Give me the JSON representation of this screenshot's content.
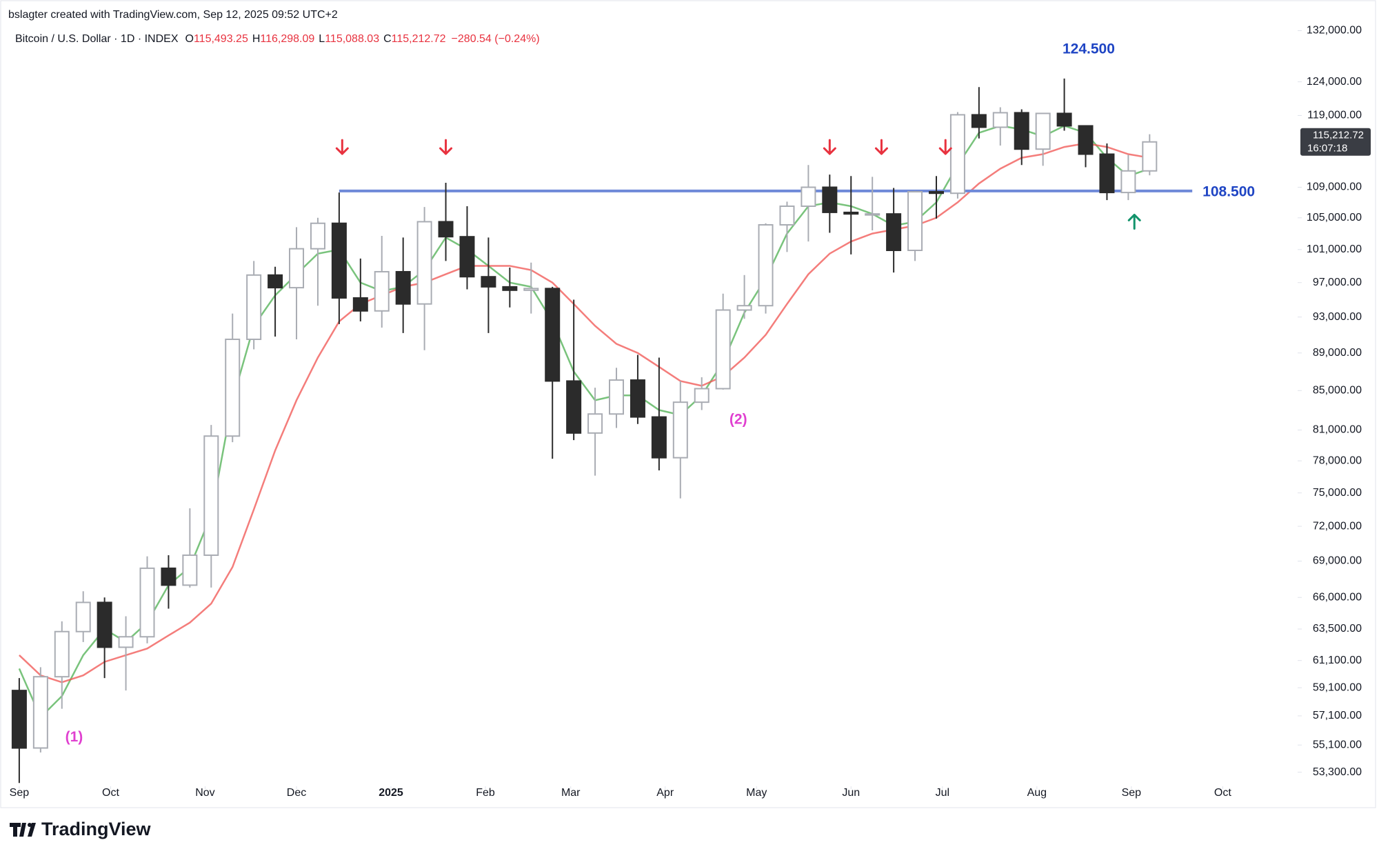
{
  "header": {
    "credit": "bslagter created with TradingView.com, Sep 12, 2025 09:52 UTC+2",
    "symbol": "Bitcoin / U.S. Dollar · 1D · INDEX",
    "ohlc": [
      {
        "key": "O",
        "text": "115,493.25"
      },
      {
        "key": "H",
        "text": "116,298.09"
      },
      {
        "key": "L",
        "text": "115,088.03"
      },
      {
        "key": "C",
        "text": "115,212.72"
      }
    ],
    "change": "−280.54 (−0.24%)"
  },
  "footer": {
    "brand": "TradingView"
  },
  "chart_data": {
    "type": "candlestick",
    "log_scale": true,
    "grid": false,
    "ylim": [
      52700,
      133400
    ],
    "yticks": [
      {
        "value": 132000,
        "label": "132,000.00"
      },
      {
        "value": 124000,
        "label": "124,000.00"
      },
      {
        "value": 119000,
        "label": "119,000.00"
      },
      {
        "value": 109000,
        "label": "109,000.00"
      },
      {
        "value": 105000,
        "label": "105,000.00"
      },
      {
        "value": 101000,
        "label": "101,000.00"
      },
      {
        "value": 97000,
        "label": "97,000.00"
      },
      {
        "value": 93000,
        "label": "93,000.00"
      },
      {
        "value": 89000,
        "label": "89,000.00"
      },
      {
        "value": 85000,
        "label": "85,000.00"
      },
      {
        "value": 81000,
        "label": "81,000.00"
      },
      {
        "value": 78000,
        "label": "78,000.00"
      },
      {
        "value": 75000,
        "label": "75,000.00"
      },
      {
        "value": 72000,
        "label": "72,000.00"
      },
      {
        "value": 69000,
        "label": "69,000.00"
      },
      {
        "value": 66000,
        "label": "66,000.00"
      },
      {
        "value": 63500,
        "label": "63,500.00"
      },
      {
        "value": 61100,
        "label": "61,100.00"
      },
      {
        "value": 59100,
        "label": "59,100.00"
      },
      {
        "value": 57100,
        "label": "57,100.00"
      },
      {
        "value": 55100,
        "label": "55,100.00"
      },
      {
        "value": 53300,
        "label": "53,300.00"
      }
    ],
    "xlim": [
      -3.6,
      418
    ],
    "xticks": [
      {
        "value": 0,
        "label": "Sep"
      },
      {
        "value": 30,
        "label": "Oct"
      },
      {
        "value": 61,
        "label": "Nov"
      },
      {
        "value": 91,
        "label": "Dec"
      },
      {
        "value": 122,
        "label": "2025"
      },
      {
        "value": 153,
        "label": "Feb"
      },
      {
        "value": 181,
        "label": "Mar"
      },
      {
        "value": 212,
        "label": "Apr"
      },
      {
        "value": 242,
        "label": "May"
      },
      {
        "value": 273,
        "label": "Jun"
      },
      {
        "value": 303,
        "label": "Jul"
      },
      {
        "value": 334,
        "label": "Aug"
      },
      {
        "value": 365,
        "label": "Sep"
      },
      {
        "value": 395,
        "label": "Oct"
      }
    ],
    "x": [
      0,
      7,
      14,
      21,
      28,
      35,
      42,
      49,
      56,
      63,
      70,
      77,
      84,
      91,
      98,
      105,
      112,
      119,
      126,
      133,
      140,
      147,
      154,
      161,
      168,
      175,
      182,
      189,
      196,
      203,
      210,
      217,
      224,
      231,
      238,
      245,
      252,
      259,
      266,
      273,
      280,
      287,
      294,
      301,
      308,
      315,
      322,
      329,
      336,
      343,
      350,
      357,
      364,
      371
    ],
    "open": [
      58900,
      54900,
      59900,
      63300,
      65600,
      62100,
      62900,
      68400,
      67000,
      69500,
      80400,
      90500,
      97900,
      96400,
      101100,
      104300,
      95200,
      93700,
      98300,
      94500,
      104500,
      102600,
      97700,
      96500,
      96100,
      96300,
      86000,
      80700,
      82600,
      86100,
      82300,
      78300,
      83800,
      85200,
      93800,
      94300,
      104100,
      106500,
      109000,
      105700,
      105500,
      105500,
      100900,
      108400,
      108200,
      119100,
      117300,
      119400,
      114200,
      119300,
      117500,
      113500,
      108300,
      111200
    ],
    "high": [
      59800,
      60600,
      64100,
      66500,
      66000,
      64500,
      69400,
      69500,
      73600,
      81500,
      93400,
      99600,
      98900,
      103800,
      105000,
      108300,
      99900,
      102700,
      102500,
      106400,
      109600,
      106500,
      102500,
      98800,
      99400,
      96500,
      95000,
      85300,
      87400,
      88800,
      88500,
      86000,
      86400,
      95700,
      97900,
      104300,
      107100,
      112000,
      110700,
      110500,
      110400,
      108900,
      108500,
      110500,
      119500,
      123200,
      120200,
      119900,
      119300,
      124500,
      117500,
      115000,
      113400,
      116300
    ],
    "low": [
      52600,
      54600,
      57600,
      62500,
      59800,
      58900,
      62400,
      65100,
      66800,
      66800,
      79800,
      89400,
      90800,
      90500,
      94300,
      92200,
      92500,
      91800,
      91200,
      89300,
      99600,
      96200,
      91200,
      94100,
      93400,
      78200,
      80000,
      76600,
      81200,
      81600,
      77100,
      74500,
      83000,
      85100,
      92800,
      93400,
      100700,
      102000,
      103100,
      100400,
      103400,
      98200,
      99600,
      104900,
      107500,
      115700,
      114700,
      112000,
      111900,
      116800,
      111700,
      107300,
      107300,
      110600
    ],
    "close": [
      54900,
      59900,
      63300,
      65600,
      62100,
      62900,
      68400,
      67000,
      69500,
      80400,
      90500,
      97900,
      96400,
      101100,
      104300,
      95200,
      93700,
      98300,
      94500,
      104500,
      102600,
      97700,
      96500,
      96100,
      96300,
      86000,
      80700,
      82600,
      86100,
      82300,
      78300,
      83800,
      85200,
      93800,
      94300,
      104100,
      106500,
      109000,
      105700,
      105500,
      105500,
      100900,
      108400,
      108200,
      119100,
      117300,
      119400,
      114200,
      119300,
      117500,
      113500,
      108300,
      111200,
      115212.72
    ],
    "up_color": "#a9acb3",
    "down_color": "#2b2b2b",
    "series": [
      {
        "color": "#4caf50",
        "values": [
          60500,
          57000,
          58500,
          61500,
          63500,
          62500,
          64000,
          67000,
          68500,
          73000,
          84000,
          92000,
          95500,
          98000,
          100500,
          101000,
          97000,
          96000,
          96500,
          98500,
          102500,
          101000,
          99000,
          97000,
          96500,
          92500,
          87000,
          84000,
          84500,
          84500,
          83000,
          82500,
          84500,
          88000,
          93500,
          97500,
          103000,
          106500,
          107000,
          106500,
          105500,
          104000,
          104500,
          107000,
          112000,
          116500,
          117500,
          117000,
          116000,
          117500,
          116500,
          113000,
          110500,
          111500
        ]
      },
      {
        "color": "#f0524f",
        "values": [
          61500,
          60000,
          59500,
          60000,
          61000,
          61500,
          62000,
          63000,
          64000,
          65500,
          68500,
          73500,
          79000,
          84000,
          88500,
          92500,
          94500,
          95500,
          96500,
          97000,
          98000,
          99000,
          99000,
          99000,
          98500,
          97000,
          94500,
          92000,
          90000,
          89000,
          87500,
          86000,
          85500,
          86500,
          88500,
          91000,
          94500,
          98000,
          100500,
          102000,
          103000,
          103500,
          104000,
          105000,
          107000,
          109500,
          111500,
          113000,
          113500,
          114500,
          115000,
          114500,
          113500,
          113000
        ]
      }
    ],
    "hline": {
      "value": 108500,
      "from": 105,
      "to": 385,
      "color": "#6f89d8",
      "label": "108.500",
      "label_color": "#1f45c4"
    },
    "last_price": {
      "value": 115212.72,
      "label": "115,212.72",
      "countdown": "16:07:18"
    },
    "annotations": [
      {
        "text": "124.500",
        "x": 351,
        "y": 129000,
        "color": "#1f45c4"
      },
      {
        "text": "(1)",
        "x": 18,
        "y": 55600,
        "color": "#e040d0"
      },
      {
        "text": "(2)",
        "x": 236,
        "y": 82000,
        "color": "#e040d0"
      }
    ],
    "arrows": [
      {
        "x": 106,
        "y": 114500,
        "direction": "down",
        "color": "#e8323f"
      },
      {
        "x": 140,
        "y": 114500,
        "direction": "down",
        "color": "#e8323f"
      },
      {
        "x": 266,
        "y": 114500,
        "direction": "down",
        "color": "#e8323f"
      },
      {
        "x": 283,
        "y": 114500,
        "direction": "down",
        "color": "#e8323f"
      },
      {
        "x": 304,
        "y": 114500,
        "direction": "down",
        "color": "#e8323f"
      },
      {
        "x": 366,
        "y": 104500,
        "direction": "up",
        "color": "#12936b"
      }
    ]
  }
}
